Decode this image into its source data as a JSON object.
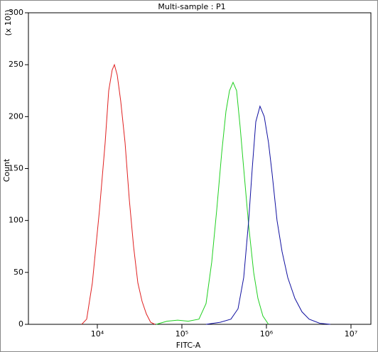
{
  "chart_data": {
    "type": "line",
    "title": "Multi-sample : P1",
    "x_label": "FITC-A",
    "y_label": "Count",
    "y_multiplier": "(x 10¹)",
    "x_scale": "log",
    "xlim": [
      1531,
      17200000
    ],
    "xticks": [
      {
        "value": 10000,
        "label": "10⁴"
      },
      {
        "value": 100000,
        "label": "10⁵"
      },
      {
        "value": 1000000,
        "label": "10⁶"
      },
      {
        "value": 10000000,
        "label": "10⁷"
      }
    ],
    "ylim": [
      0,
      300
    ],
    "yticks": [
      0,
      50,
      100,
      150,
      200,
      250,
      300
    ],
    "series": [
      {
        "color": "#e02020",
        "x": [
          6531,
          7482,
          8736,
          10598,
          12370,
          13620,
          15000,
          15910,
          17180,
          18920,
          21260,
          23880,
          26830,
          30130,
          33830,
          38000,
          42660,
          47930
        ],
        "values": [
          0,
          5,
          40,
          110,
          175,
          225,
          245,
          250,
          240,
          215,
          175,
          120,
          75,
          40,
          22,
          10,
          2,
          0
        ]
      },
      {
        "color": "#20d020",
        "x": [
          49770,
          66640,
          89130,
          119100,
          159300,
          193300,
          225600,
          258300,
          295700,
          332000,
          365600,
          402700,
          443600,
          488600,
          538200,
          616600,
          706300,
          792800,
          907800,
          1059000
        ],
        "values": [
          0,
          3,
          4,
          3,
          5,
          20,
          60,
          110,
          165,
          205,
          225,
          233,
          225,
          190,
          150,
          95,
          50,
          25,
          8,
          0
        ]
      },
      {
        "color": "#1010a0",
        "x": [
          193300,
          284400,
          380200,
          461300,
          538200,
          616600,
          679200,
          748200,
          839500,
          943000,
          1059000,
          1167000,
          1336000,
          1531000,
          1787000,
          2168000,
          2630000,
          3192000,
          4266000,
          5702000
        ],
        "values": [
          0,
          2,
          5,
          15,
          45,
          100,
          150,
          195,
          210,
          200,
          175,
          145,
          100,
          70,
          45,
          25,
          12,
          5,
          1,
          0
        ]
      }
    ]
  }
}
